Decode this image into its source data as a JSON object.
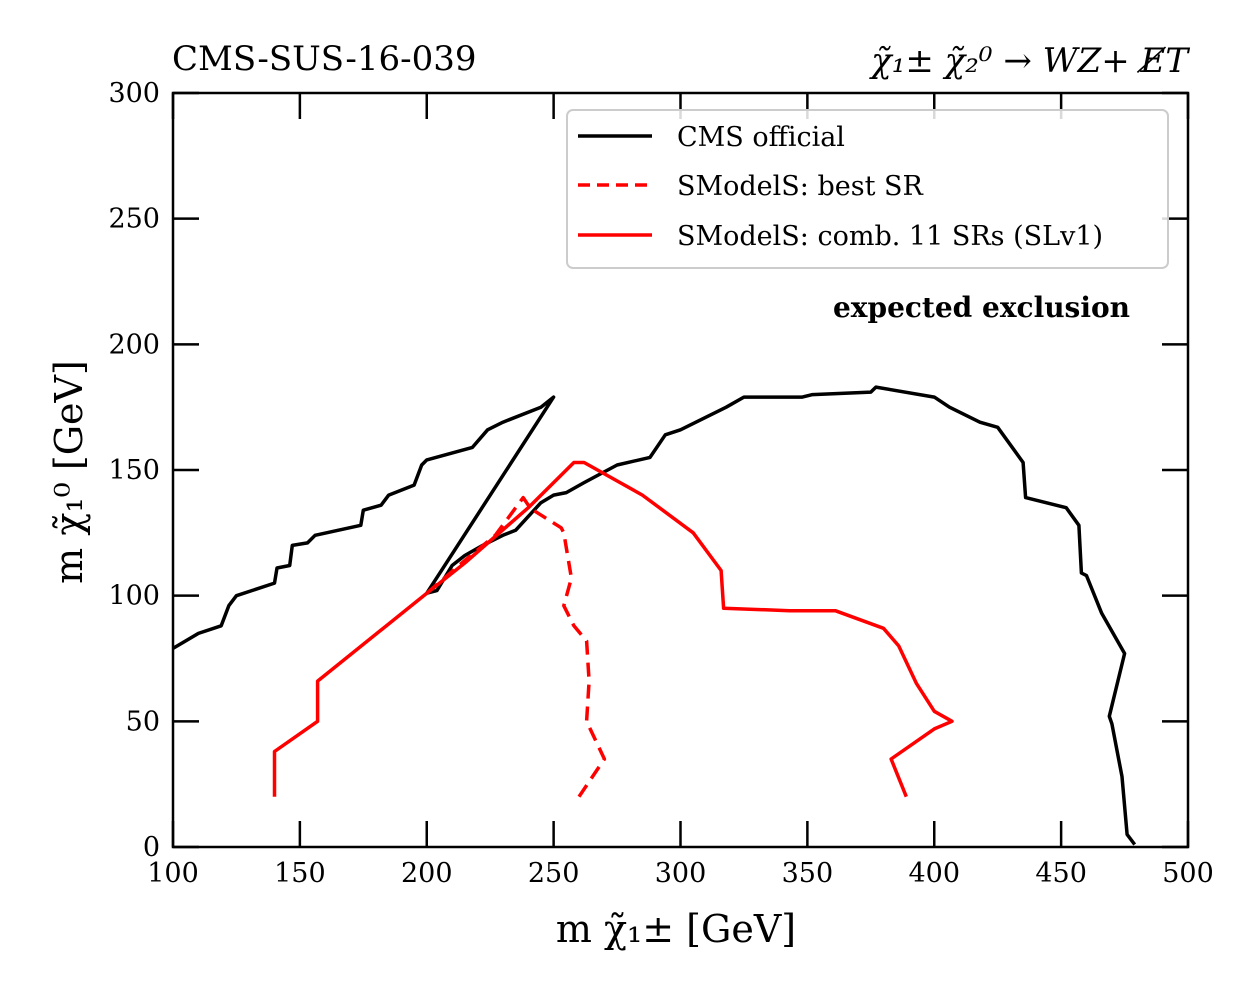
{
  "chart_data": {
    "type": "line",
    "title_left": "CMS-SUS-16-039",
    "title_right": "χ̃₁± χ̃₂⁰ → WZ+ E̸T",
    "xlabel": "m χ̃₁± [GeV]",
    "ylabel": "m χ̃₁⁰ [GeV]",
    "xlim": [
      100,
      500
    ],
    "ylim": [
      0,
      300
    ],
    "xticks": [
      100,
      150,
      200,
      250,
      300,
      350,
      400,
      450,
      500
    ],
    "yticks": [
      0,
      50,
      100,
      150,
      200,
      250,
      300
    ],
    "annotation": "expected exclusion",
    "legend_position": "top-right",
    "series": [
      {
        "name": "CMS official",
        "color": "#000000",
        "style": "solid",
        "points": [
          [
            100,
            79
          ],
          [
            110,
            85
          ],
          [
            119,
            88
          ],
          [
            122,
            96
          ],
          [
            125,
            100
          ],
          [
            140,
            105
          ],
          [
            141,
            111
          ],
          [
            146,
            112
          ],
          [
            147,
            120
          ],
          [
            153,
            121
          ],
          [
            156,
            124
          ],
          [
            174,
            128
          ],
          [
            175,
            134
          ],
          [
            182,
            136
          ],
          [
            185,
            140
          ],
          [
            195,
            144
          ],
          [
            198,
            152
          ],
          [
            200,
            154
          ],
          [
            218,
            159
          ],
          [
            224,
            166
          ],
          [
            230,
            169
          ],
          [
            245,
            175
          ],
          [
            250,
            179
          ],
          [
            200,
            101
          ],
          [
            204,
            102
          ],
          [
            210,
            112
          ],
          [
            215,
            116
          ],
          [
            222,
            120
          ],
          [
            230,
            124
          ],
          [
            235,
            126
          ],
          [
            245,
            137
          ],
          [
            250,
            140
          ],
          [
            255,
            141
          ],
          [
            262,
            145
          ],
          [
            275,
            152
          ],
          [
            288,
            155
          ],
          [
            294,
            164
          ],
          [
            300,
            166
          ],
          [
            318,
            175
          ],
          [
            325,
            179
          ],
          [
            348,
            179
          ],
          [
            352,
            180
          ],
          [
            375,
            181
          ],
          [
            377,
            183
          ],
          [
            400,
            179
          ],
          [
            406,
            175
          ],
          [
            418,
            169
          ],
          [
            425,
            167
          ],
          [
            435,
            153
          ],
          [
            436,
            139
          ],
          [
            452,
            135
          ],
          [
            457,
            128
          ],
          [
            458,
            109
          ],
          [
            460,
            108
          ],
          [
            466,
            93
          ],
          [
            475,
            77
          ],
          [
            469,
            52
          ],
          [
            470,
            49
          ],
          [
            474,
            28
          ],
          [
            476,
            5
          ],
          [
            479,
            1
          ]
        ]
      },
      {
        "name": "SModelS: best SR",
        "color": "#ff0000",
        "style": "dashed",
        "points": [
          [
            200,
            101
          ],
          [
            215,
            114
          ],
          [
            227,
            124
          ],
          [
            238,
            139
          ],
          [
            240,
            136
          ],
          [
            242,
            134
          ],
          [
            253,
            127
          ],
          [
            254,
            125
          ],
          [
            257,
            107
          ],
          [
            254,
            96
          ],
          [
            258,
            88
          ],
          [
            263,
            82
          ],
          [
            264,
            66
          ],
          [
            263,
            50
          ],
          [
            270,
            35
          ],
          [
            260,
            20
          ]
        ]
      },
      {
        "name": "SModelS: comb. 11 SRs (SLv1)",
        "color": "#ff0000",
        "style": "solid",
        "points": [
          [
            140,
            20
          ],
          [
            140,
            38
          ],
          [
            157,
            50
          ],
          [
            157,
            66
          ],
          [
            200,
            101
          ],
          [
            215,
            113
          ],
          [
            240,
            135
          ],
          [
            258,
            153
          ],
          [
            262,
            153
          ],
          [
            285,
            140
          ],
          [
            305,
            125
          ],
          [
            316,
            110
          ],
          [
            317,
            95
          ],
          [
            343,
            94
          ],
          [
            361,
            94
          ],
          [
            380,
            87
          ],
          [
            386,
            80
          ],
          [
            393,
            65
          ],
          [
            400,
            54
          ],
          [
            407,
            50
          ],
          [
            400,
            47
          ],
          [
            383,
            35
          ],
          [
            389,
            20
          ]
        ]
      }
    ]
  }
}
